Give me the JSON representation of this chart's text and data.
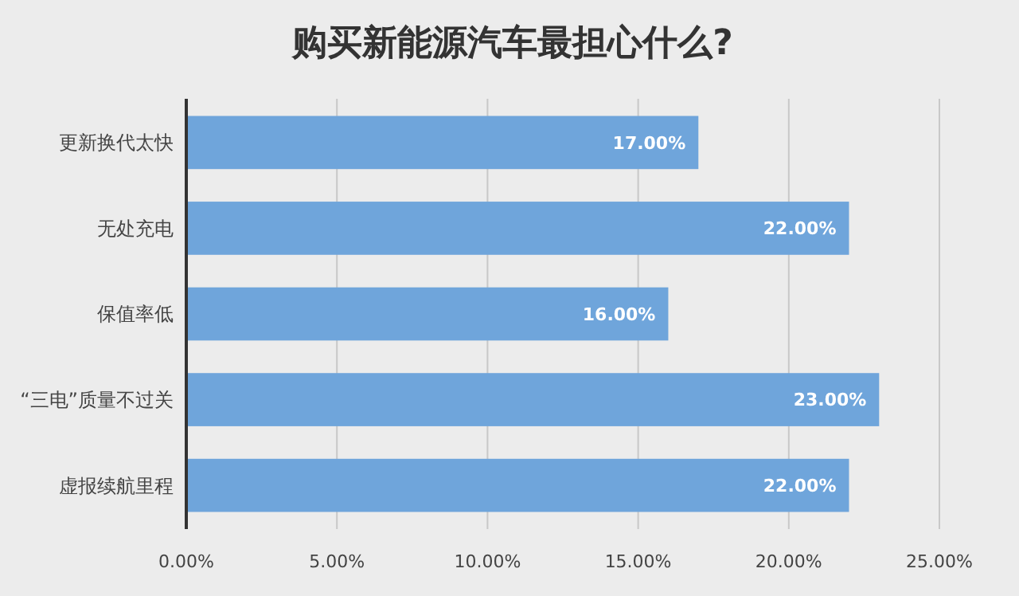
{
  "chart_data": {
    "type": "bar",
    "orientation": "horizontal",
    "title": "购买新能源汽车最担心什么?",
    "categories": [
      "更新换代太快",
      "无处充电",
      "保值率低",
      "“三电”质量不过关",
      "虚报续航里程"
    ],
    "values": [
      17,
      22,
      16,
      23,
      22
    ],
    "value_labels": [
      "17.00%",
      "22.00%",
      "16.00%",
      "23.00%",
      "22.00%"
    ],
    "color": "#6fa5db",
    "xlim": [
      0,
      25
    ],
    "xticks": [
      {
        "value": 0,
        "label": "0.00%"
      },
      {
        "value": 5,
        "label": "5.00%"
      },
      {
        "value": 10,
        "label": "10.00%"
      },
      {
        "value": 15,
        "label": "15.00%"
      },
      {
        "value": 20,
        "label": "20.00%"
      },
      {
        "value": 25,
        "label": "25.00%"
      }
    ],
    "grid": "x"
  }
}
